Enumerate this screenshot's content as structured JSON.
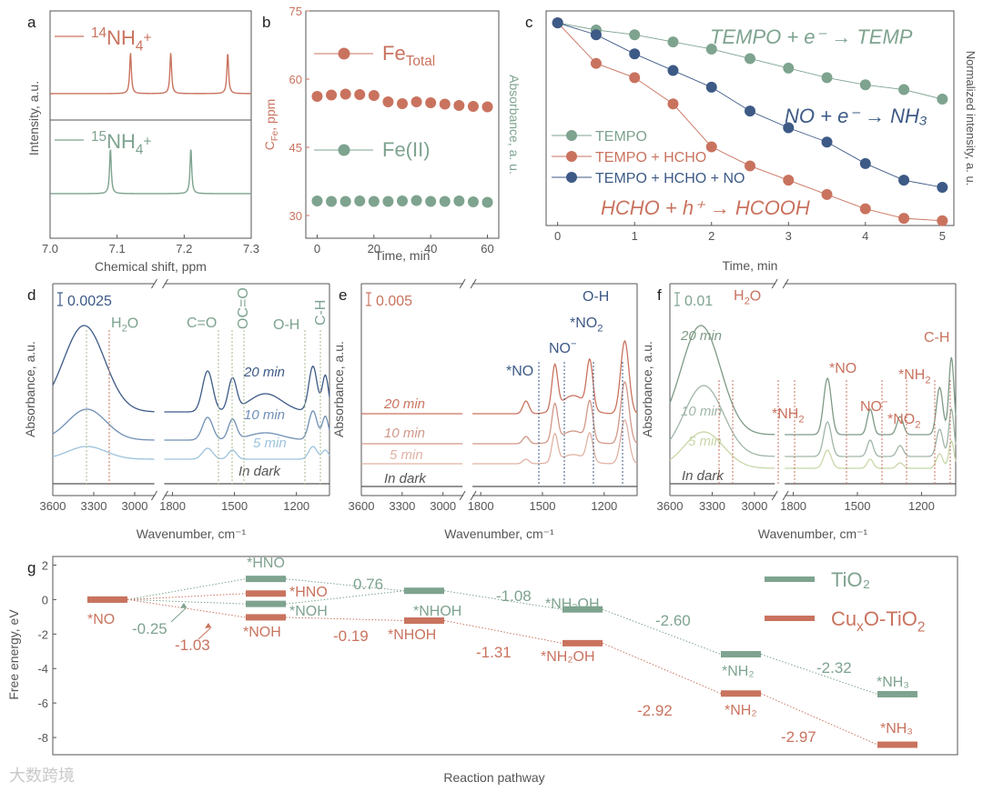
{
  "colors": {
    "red": "#c9735f",
    "teal": "#7ea38f",
    "navy": "#3d5a86",
    "lightblue": "#9cc3dc",
    "olive": "#a7b88e",
    "gray": "#555555"
  },
  "watermark": "大数跨境",
  "chart_data": [
    {
      "panel": "a",
      "type": "line",
      "xlabel": "Chemical shift, ppm",
      "ylabel": "Intensity, a.u.",
      "x_ticks": [
        "7.0",
        "7.1",
        "7.2",
        "7.3"
      ],
      "xlim": [
        7.0,
        7.3
      ],
      "series": [
        {
          "name": "14NH4+",
          "peaks": [
            7.12,
            7.18,
            7.265
          ]
        },
        {
          "name": "15NH4+",
          "peaks": [
            7.09,
            7.21
          ]
        }
      ],
      "legend": [
        {
          "sup": "14",
          "base": "NH",
          "sub": "4",
          "charge": "+"
        },
        {
          "sup": "15",
          "base": "NH",
          "sub": "4",
          "charge": "+"
        }
      ]
    },
    {
      "panel": "b",
      "type": "scatter",
      "xlabel": "Time, min",
      "ylabel": "C",
      "ylabel_sub": "Fe",
      "ylabel_rest": ", ppm",
      "ylabel_right": "Absorbance, a. u.",
      "x_ticks": [
        "0",
        "20",
        "40",
        "60"
      ],
      "y_ticks": [
        "30",
        "45",
        "60",
        "75"
      ],
      "ylim": [
        25,
        75
      ],
      "xlim": [
        -4,
        64
      ],
      "x": [
        0,
        5,
        10,
        15,
        20,
        25,
        30,
        35,
        40,
        45,
        50,
        55,
        60
      ],
      "series": [
        {
          "name": "Fe",
          "name_sub": "Total",
          "values": [
            56.2,
            56.5,
            56.7,
            56.6,
            56.4,
            55,
            54.6,
            55,
            54.8,
            54.5,
            54.2,
            54,
            53.9
          ]
        },
        {
          "name": "Fe(II)",
          "values": [
            33.2,
            33.1,
            33.1,
            33.2,
            33.1,
            33.1,
            33.2,
            33.3,
            33.1,
            33.1,
            33.2,
            33,
            32.9
          ]
        }
      ]
    },
    {
      "panel": "c",
      "type": "line",
      "xlabel": "Time, min",
      "ylabel": "Normalized intensity, a. u.",
      "x_ticks": [
        "0",
        "1",
        "2",
        "3",
        "4",
        "5"
      ],
      "xlim": [
        -0.15,
        5.15
      ],
      "ylim": [
        0.15,
        1.05
      ],
      "x": [
        0,
        0.5,
        1,
        1.5,
        2,
        2.5,
        3,
        3.5,
        4,
        4.5,
        5
      ],
      "series": [
        {
          "name": "TEMPO",
          "values": [
            1,
            0.97,
            0.95,
            0.92,
            0.89,
            0.85,
            0.81,
            0.77,
            0.74,
            0.72,
            0.68
          ]
        },
        {
          "name": "TEMPO + HCHO",
          "values": [
            1,
            0.83,
            0.77,
            0.66,
            0.48,
            0.4,
            0.34,
            0.28,
            0.22,
            0.18,
            0.17
          ]
        },
        {
          "name": "TEMPO + HCHO + NO",
          "values": [
            1,
            0.95,
            0.87,
            0.8,
            0.73,
            0.63,
            0.56,
            0.5,
            0.41,
            0.34,
            0.31
          ]
        }
      ],
      "annotations": [
        "TEMPO + e⁻ → TEMP",
        "NO + e⁻ → NH₃",
        "HCHO + h⁺ → HCOOH"
      ]
    },
    {
      "panel": "d",
      "type": "line",
      "xlabel": "Wavenumber, cm⁻¹",
      "ylabel": "Absorbance, a.u.",
      "scale": "0.0025",
      "x_ticks": [
        "3600",
        "3300",
        "3000",
        "1800",
        "1500",
        "1200"
      ],
      "series": [
        {
          "name": "20 min"
        },
        {
          "name": "10 min"
        },
        {
          "name": "5 min"
        },
        {
          "name": "In dark"
        }
      ],
      "annotations": [
        "H₂O",
        "C=O",
        "OC=O",
        "O-H",
        "C-H"
      ]
    },
    {
      "panel": "e",
      "type": "line",
      "xlabel": "Wavenumber, cm⁻¹",
      "ylabel": "Absorbance, a.u.",
      "scale": "0.005",
      "x_ticks": [
        "3600",
        "3300",
        "3000",
        "1800",
        "1500",
        "1200"
      ],
      "series": [
        {
          "name": "20 min"
        },
        {
          "name": "10 min"
        },
        {
          "name": "5 min"
        },
        {
          "name": "In dark"
        }
      ],
      "annotations": [
        "*NO",
        "NO⁻",
        "*NO₂",
        "O-H"
      ]
    },
    {
      "panel": "f",
      "type": "line",
      "xlabel": "Wavenumber, cm⁻¹",
      "ylabel": "Absorbance, a.u.",
      "scale": "0.01",
      "x_ticks": [
        "3600",
        "3300",
        "3000",
        "1800",
        "1500",
        "1200"
      ],
      "series": [
        {
          "name": "20 min"
        },
        {
          "name": "10 min"
        },
        {
          "name": "5 min"
        },
        {
          "name": "In dark"
        }
      ],
      "annotations": [
        "H₂O",
        "*NH₂",
        "*NO",
        "NO⁻",
        "*NO₂",
        "*NH₂",
        "C-H"
      ]
    },
    {
      "panel": "g",
      "type": "line",
      "xlabel": "Reaction pathway",
      "ylabel": "Free energy, eV",
      "y_ticks": [
        "2",
        "0",
        "-2",
        "-4",
        "-6",
        "-8"
      ],
      "ylim": [
        -9,
        2.5
      ],
      "series": [
        {
          "name": "TiO₂",
          "steps": [
            {
              "label": "*NO",
              "y": 0
            },
            {
              "label": "*HNO",
              "y": 1.2
            },
            {
              "label": "*NOH",
              "y": -0.25
            },
            {
              "label": "*NHOH",
              "y": 0.51
            },
            {
              "label": "*NH₂OH",
              "y": -0.57
            },
            {
              "label": "*NH₂",
              "y": -3.17
            },
            {
              "label": "*NH₃",
              "y": -5.49
            }
          ]
        },
        {
          "name": "CuₓO-TiO₂",
          "steps": [
            {
              "label": "*NO",
              "y": 0
            },
            {
              "label": "*HNO",
              "y": 0.35
            },
            {
              "label": "*NOH",
              "y": -1.03
            },
            {
              "label": "*NHOH",
              "y": -1.22
            },
            {
              "label": "*NH₂OH",
              "y": -2.53
            },
            {
              "label": "*NH₂",
              "y": -5.45
            },
            {
              "label": "*NH₃",
              "y": -8.42
            }
          ]
        }
      ],
      "step_labels": {
        "teal": [
          "-0.25",
          "0.76",
          "-1.08",
          "-2.60",
          "-2.32"
        ],
        "red": [
          "-1.03",
          "-0.19",
          "-1.31",
          "-2.92",
          "-2.97"
        ]
      }
    }
  ]
}
